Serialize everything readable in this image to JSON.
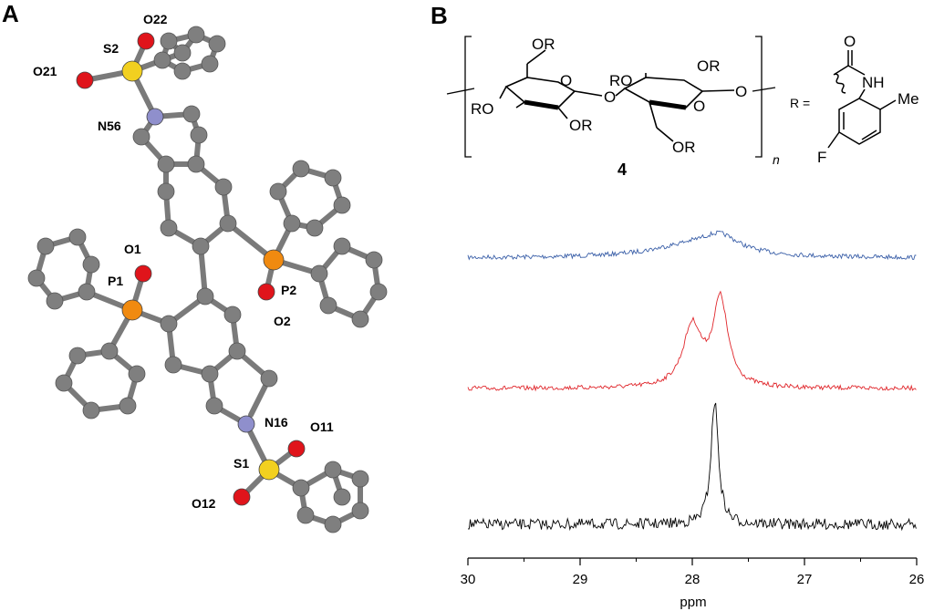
{
  "panels": {
    "a": "A",
    "b": "B"
  },
  "crystal_structure": {
    "atom_labels": [
      "O22",
      "S2",
      "O21",
      "N56",
      "O1",
      "P1",
      "P2",
      "O2",
      "N16",
      "O11",
      "S1",
      "O12"
    ],
    "colors": {
      "carbon": "#7f7f7f",
      "oxygen": "#e0141b",
      "sulfur": "#f2d020",
      "nitrogen": "#8f8fcc",
      "phosphorus": "#f08a10",
      "bond": "#7a7a7a"
    }
  },
  "chemical_structure": {
    "ring_labels": [
      "OR",
      "RO",
      "OR",
      "RO",
      "OR",
      "OR"
    ],
    "glycosidic_o": [
      "O",
      "O",
      "O",
      "O"
    ],
    "compound_number": "4",
    "subscript": "n",
    "r_equals": "R =",
    "substituent": {
      "carbonyl_o": "O",
      "nh": "NH",
      "methyl": "Me",
      "fluoro": "F"
    }
  },
  "spectrum": {
    "x_ticks": [
      "30",
      "29",
      "28",
      "27",
      "26"
    ],
    "x_label": "ppm"
  },
  "chart_data": {
    "type": "line",
    "xlabel": "ppm",
    "xlim": [
      30,
      26
    ],
    "x_reversed": true,
    "series": [
      {
        "color": "#3a5fa8",
        "peaks": [
          {
            "x": 28.0,
            "height": 0.35,
            "width": 0.45
          },
          {
            "x": 27.75,
            "height": 0.45,
            "width": 0.2
          }
        ]
      },
      {
        "color": "#e0262b",
        "peaks": [
          {
            "x": 28.0,
            "height": 0.7,
            "width": 0.1
          },
          {
            "x": 27.75,
            "height": 1.0,
            "width": 0.08
          }
        ]
      },
      {
        "color": "#000000",
        "peaks": [
          {
            "x": 27.8,
            "height": 1.0,
            "width": 0.04
          }
        ]
      }
    ]
  }
}
